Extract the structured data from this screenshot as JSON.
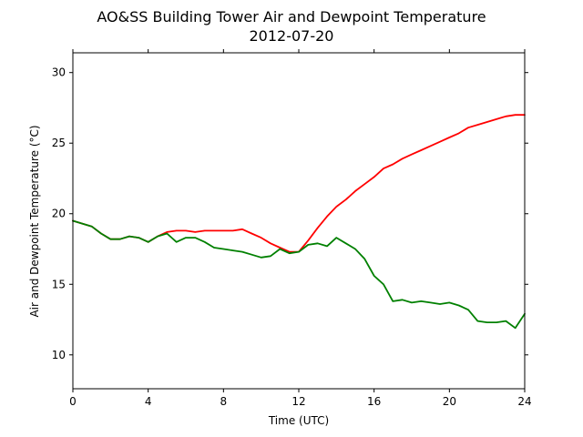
{
  "chart_data": {
    "type": "line",
    "title": "AO&SS Building Tower Air and Dewpoint Temperature",
    "subtitle": "2012-07-20",
    "xlabel": "Time (UTC)",
    "ylabel": "Air and Dewpoint Temperature (°C)",
    "xlim": [
      0,
      24
    ],
    "ylim": [
      7.6,
      31.4
    ],
    "xticks": [
      0,
      4,
      8,
      12,
      16,
      20,
      24
    ],
    "yticks": [
      10,
      15,
      20,
      25,
      30
    ],
    "grid": false,
    "legend": "none",
    "x": [
      0,
      0.5,
      1,
      1.5,
      2,
      2.5,
      3,
      3.5,
      4,
      4.5,
      5,
      5.5,
      6,
      6.5,
      7,
      7.5,
      8,
      8.5,
      9,
      9.5,
      10,
      10.5,
      11,
      11.5,
      12,
      12.5,
      13,
      13.5,
      14,
      14.5,
      15,
      15.5,
      16,
      16.5,
      17,
      17.5,
      18,
      18.5,
      19,
      19.5,
      20,
      20.5,
      21,
      21.5,
      22,
      22.5,
      23,
      23.5,
      24
    ],
    "series": [
      {
        "color": "#ff0000",
        "values": [
          19.5,
          19.3,
          19.1,
          18.6,
          18.2,
          18.2,
          18.4,
          18.3,
          18.0,
          18.4,
          18.7,
          18.8,
          18.8,
          18.7,
          18.8,
          18.8,
          18.8,
          18.8,
          18.9,
          18.6,
          18.3,
          17.9,
          17.6,
          17.3,
          17.3,
          18.1,
          19.0,
          19.8,
          20.5,
          21.0,
          21.6,
          22.1,
          22.6,
          23.2,
          23.5,
          23.9,
          24.2,
          24.5,
          24.8,
          25.1,
          25.4,
          25.7,
          26.1,
          26.3,
          26.5,
          26.7,
          26.9,
          27.0,
          27.0
        ]
      },
      {
        "color": "#008000",
        "values": [
          19.5,
          19.3,
          19.1,
          18.6,
          18.2,
          18.2,
          18.4,
          18.3,
          18.0,
          18.4,
          18.6,
          18.0,
          18.3,
          18.3,
          18.0,
          17.6,
          17.5,
          17.4,
          17.3,
          17.1,
          16.9,
          17.0,
          17.5,
          17.2,
          17.3,
          17.8,
          17.9,
          17.7,
          18.3,
          17.9,
          17.5,
          16.8,
          15.6,
          15.0,
          13.8,
          13.9,
          13.7,
          13.8,
          13.7,
          13.6,
          13.7,
          13.5,
          13.2,
          12.4,
          12.3,
          12.3,
          12.4,
          11.9,
          12.9
        ]
      }
    ]
  }
}
